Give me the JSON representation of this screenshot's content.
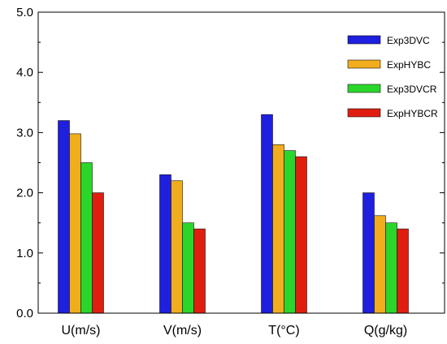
{
  "chart_data": {
    "type": "bar",
    "categories": [
      "U(m/s)",
      "V(m/s)",
      "T(°C)",
      "Q(g/kg)"
    ],
    "series": [
      {
        "name": "Exp3DVC",
        "color": "#1f1fe0",
        "values": [
          3.2,
          2.3,
          3.3,
          2.0
        ]
      },
      {
        "name": "ExpHYBC",
        "color": "#f0ad1e",
        "values": [
          2.98,
          2.2,
          2.8,
          1.62
        ]
      },
      {
        "name": "Exp3DVCR",
        "color": "#2bd62b",
        "values": [
          2.5,
          1.5,
          2.7,
          1.5
        ]
      },
      {
        "name": "ExpHYBCR",
        "color": "#e01e10",
        "values": [
          2.0,
          1.4,
          2.6,
          1.4
        ]
      }
    ],
    "ylim": [
      0,
      5
    ],
    "yticks": [
      "0.0",
      "1.0",
      "2.0",
      "3.0",
      "4.0",
      "5.0"
    ],
    "ytick_values": [
      0,
      1,
      2,
      3,
      4,
      5
    ],
    "grid": false,
    "legend_position": "top-right"
  }
}
